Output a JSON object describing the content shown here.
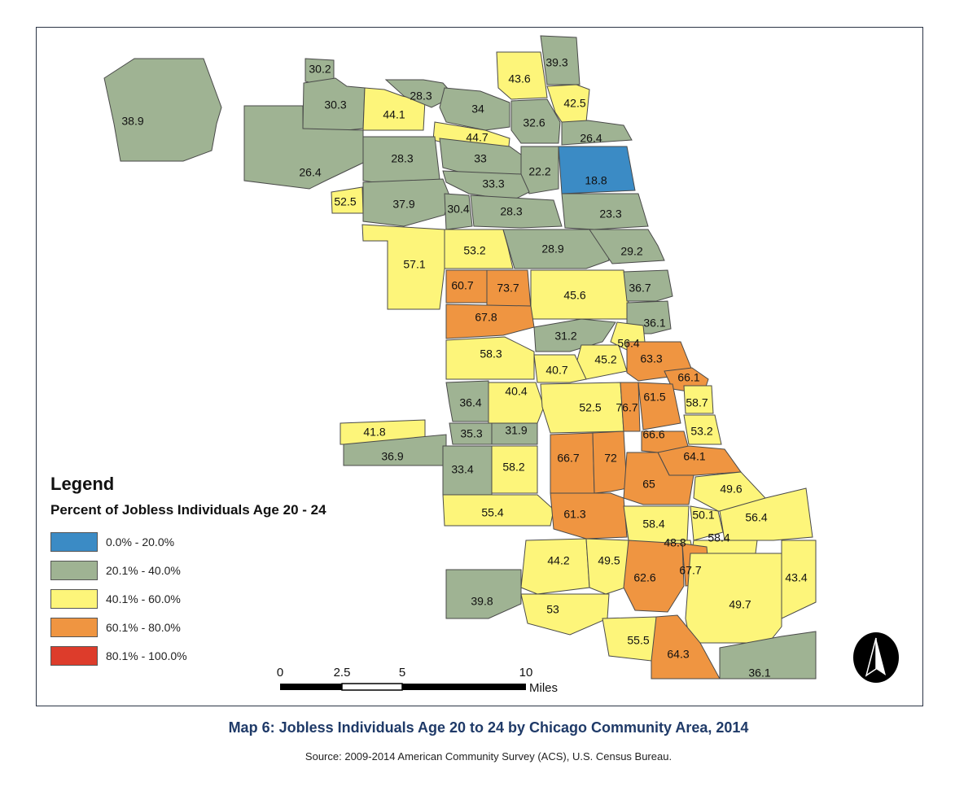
{
  "map": {
    "legend_title": "Legend",
    "legend_subtitle": "Percent of Jobless Individuals Age 20 - 24",
    "classes": [
      {
        "label": "0.0% - 20.0%",
        "color": "#3b8bc5"
      },
      {
        "label": "20.1% - 40.0%",
        "color": "#9fb393"
      },
      {
        "label": "40.1% - 60.0%",
        "color": "#fdf57a"
      },
      {
        "label": "60.1% - 80.0%",
        "color": "#ef9541"
      },
      {
        "label": "80.1% - 100.0%",
        "color": "#dd3c2b"
      }
    ],
    "scale_bar": {
      "ticks": [
        "0",
        "2.5",
        "5",
        "10"
      ],
      "unit": "Miles"
    },
    "caption": "Map 6: Jobless Individuals Age 20 to 24 by Chicago Community Area, 2014",
    "source": "Source: 2009-2014 American Community Survey (ACS), U.S. Census Bureau.",
    "areas": [
      {
        "value": "38.9",
        "class": 1
      },
      {
        "value": "30.2",
        "class": 1
      },
      {
        "value": "30.3",
        "class": 1
      },
      {
        "value": "44.1",
        "class": 2
      },
      {
        "value": "28.3",
        "class": 1
      },
      {
        "value": "34",
        "class": 1
      },
      {
        "value": "43.6",
        "class": 2
      },
      {
        "value": "39.3",
        "class": 1
      },
      {
        "value": "42.5",
        "class": 2
      },
      {
        "value": "32.6",
        "class": 1
      },
      {
        "value": "44.7",
        "class": 2
      },
      {
        "value": "26.4",
        "class": 1
      },
      {
        "value": "26.4",
        "class": 1
      },
      {
        "value": "28.3",
        "class": 1
      },
      {
        "value": "33",
        "class": 1
      },
      {
        "value": "22.2",
        "class": 1
      },
      {
        "value": "18.8",
        "class": 0
      },
      {
        "value": "33.3",
        "class": 1
      },
      {
        "value": "52.5",
        "class": 2
      },
      {
        "value": "37.9",
        "class": 1
      },
      {
        "value": "30.4",
        "class": 1
      },
      {
        "value": "28.3",
        "class": 1
      },
      {
        "value": "23.3",
        "class": 1
      },
      {
        "value": "57.1",
        "class": 2
      },
      {
        "value": "53.2",
        "class": 2
      },
      {
        "value": "28.9",
        "class": 1
      },
      {
        "value": "29.2",
        "class": 1
      },
      {
        "value": "60.7",
        "class": 3
      },
      {
        "value": "73.7",
        "class": 3
      },
      {
        "value": "45.6",
        "class": 2
      },
      {
        "value": "36.7",
        "class": 1
      },
      {
        "value": "67.8",
        "class": 3
      },
      {
        "value": "36.1",
        "class": 1
      },
      {
        "value": "31.2",
        "class": 1
      },
      {
        "value": "56.4",
        "class": 2
      },
      {
        "value": "58.3",
        "class": 2
      },
      {
        "value": "45.2",
        "class": 2
      },
      {
        "value": "63.3",
        "class": 3
      },
      {
        "value": "40.7",
        "class": 2
      },
      {
        "value": "66.1",
        "class": 3
      },
      {
        "value": "36.4",
        "class": 1
      },
      {
        "value": "40.4",
        "class": 2
      },
      {
        "value": "52.5",
        "class": 2
      },
      {
        "value": "76.7",
        "class": 3
      },
      {
        "value": "61.5",
        "class": 3
      },
      {
        "value": "58.7",
        "class": 2
      },
      {
        "value": "41.8",
        "class": 2
      },
      {
        "value": "35.3",
        "class": 1
      },
      {
        "value": "31.9",
        "class": 1
      },
      {
        "value": "53.2",
        "class": 2
      },
      {
        "value": "66.6",
        "class": 3
      },
      {
        "value": "36.9",
        "class": 1
      },
      {
        "value": "66.7",
        "class": 3
      },
      {
        "value": "72",
        "class": 3
      },
      {
        "value": "64.1",
        "class": 3
      },
      {
        "value": "33.4",
        "class": 1
      },
      {
        "value": "58.2",
        "class": 2
      },
      {
        "value": "65",
        "class": 3
      },
      {
        "value": "49.6",
        "class": 2
      },
      {
        "value": "55.4",
        "class": 2
      },
      {
        "value": "61.3",
        "class": 3
      },
      {
        "value": "58.4",
        "class": 2
      },
      {
        "value": "50.1",
        "class": 2
      },
      {
        "value": "56.4",
        "class": 2
      },
      {
        "value": "48.8",
        "class": 2
      },
      {
        "value": "58.4",
        "class": 2
      },
      {
        "value": "44.2",
        "class": 2
      },
      {
        "value": "49.5",
        "class": 2
      },
      {
        "value": "62.6",
        "class": 3
      },
      {
        "value": "67.7",
        "class": 3
      },
      {
        "value": "43.4",
        "class": 2
      },
      {
        "value": "39.8",
        "class": 1
      },
      {
        "value": "53",
        "class": 2
      },
      {
        "value": "49.7",
        "class": 2
      },
      {
        "value": "55.5",
        "class": 2
      },
      {
        "value": "64.3",
        "class": 3
      },
      {
        "value": "36.1",
        "class": 1
      }
    ]
  }
}
